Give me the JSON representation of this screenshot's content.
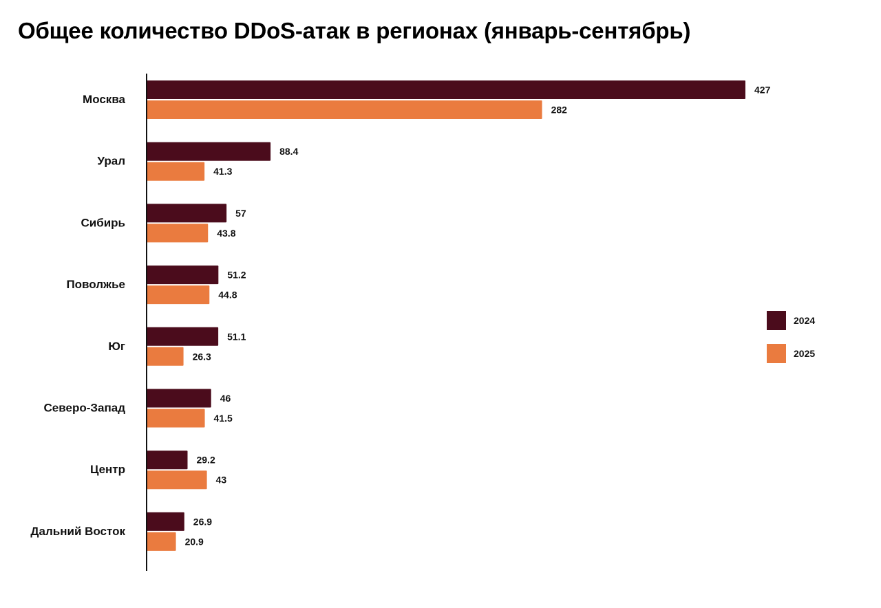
{
  "chart_data": {
    "type": "bar",
    "orientation": "horizontal",
    "title": "Общее количество DDoS-атак в регионах (январь-сентябрь)",
    "xlabel": "",
    "ylabel": "",
    "categories": [
      "Москва",
      "Урал",
      "Сибирь",
      "Поволжье",
      "Юг",
      "Северо-Запад",
      "Центр",
      "Дальний Восток"
    ],
    "series": [
      {
        "name": "2024",
        "color": "#4B0C1C",
        "values": [
          427,
          88.4,
          57,
          51.2,
          51.1,
          46,
          29.2,
          26.9
        ],
        "labels": [
          "427",
          "88.4",
          "57",
          "51.2",
          "51.1",
          "46",
          "29.2",
          "26.9"
        ]
      },
      {
        "name": "2025",
        "color": "#EA7B3F",
        "values": [
          282,
          41.3,
          43.8,
          44.8,
          26.3,
          41.5,
          43,
          20.9
        ],
        "labels": [
          "282",
          "41.3",
          "43.8",
          "44.8",
          "26.3",
          "41.5",
          "43",
          "20.9"
        ]
      }
    ],
    "xlim": [
      0,
      427
    ],
    "grid": false,
    "x_axis_ticks": false,
    "data_labels": true,
    "legend_position": "right"
  }
}
